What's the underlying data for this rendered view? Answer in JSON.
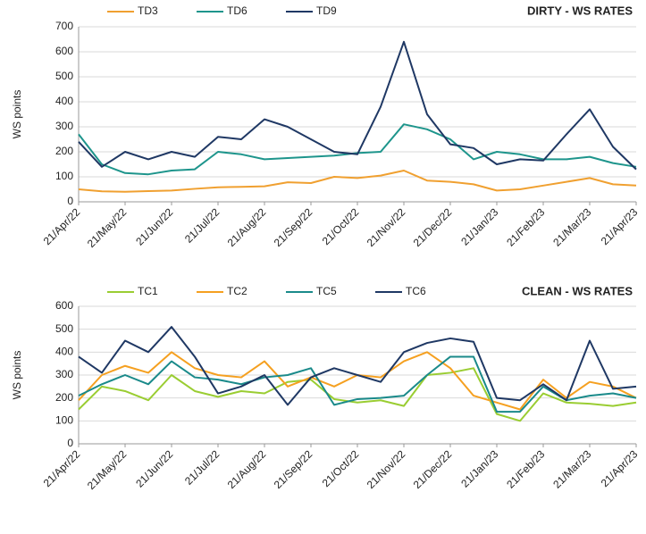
{
  "chart_data": [
    {
      "type": "line",
      "title": "DIRTY - WS RATES",
      "y_label": "WS points",
      "categories": [
        "21/Apr/22",
        null,
        "21/May/22",
        null,
        "21/Jun/22",
        null,
        "21/Jul/22",
        null,
        "21/Aug/22",
        null,
        "21/Sep/22",
        null,
        "21/Oct/22",
        null,
        "21/Nov/22",
        null,
        "21/Dec/22",
        null,
        "21/Jan/23",
        null,
        "21/Feb/23",
        null,
        "21/Mar/23",
        null,
        "21/Apr/23"
      ],
      "series": [
        {
          "name": "TD3",
          "color": "#f0a030",
          "values": [
            50,
            42,
            40,
            43,
            45,
            52,
            58,
            60,
            62,
            78,
            75,
            100,
            95,
            105,
            125,
            85,
            80,
            70,
            45,
            50,
            65,
            80,
            95,
            70,
            65
          ]
        },
        {
          "name": "TD6",
          "color": "#1e958c",
          "values": [
            270,
            150,
            115,
            110,
            125,
            130,
            200,
            190,
            170,
            175,
            180,
            185,
            195,
            200,
            310,
            290,
            250,
            170,
            200,
            190,
            170,
            170,
            180,
            155,
            140
          ]
        },
        {
          "name": "TD9",
          "color": "#1f3864",
          "values": [
            240,
            140,
            200,
            170,
            200,
            180,
            260,
            250,
            330,
            300,
            250,
            200,
            190,
            380,
            640,
            350,
            230,
            215,
            150,
            170,
            165,
            270,
            370,
            220,
            130
          ]
        }
      ],
      "ylim": [
        0,
        700
      ],
      "yticks": [
        0,
        100,
        200,
        300,
        400,
        500,
        600,
        700
      ],
      "grid": true
    },
    {
      "type": "line",
      "title": "CLEAN - WS RATES",
      "y_label": "WS points",
      "categories": [
        "21/Apr/22",
        null,
        "21/May/22",
        null,
        "21/Jun/22",
        null,
        "21/Jul/22",
        null,
        "21/Aug/22",
        null,
        "21/Sep/22",
        null,
        "21/Oct/22",
        null,
        "21/Nov/22",
        null,
        "21/Dec/22",
        null,
        "21/Jan/23",
        null,
        "21/Feb/23",
        null,
        "21/Mar/23",
        null,
        "21/Apr/23"
      ],
      "series": [
        {
          "name": "TC1",
          "color": "#9acd32",
          "values": [
            150,
            250,
            230,
            190,
            300,
            230,
            205,
            230,
            220,
            270,
            280,
            195,
            180,
            190,
            165,
            300,
            310,
            330,
            130,
            100,
            220,
            180,
            175,
            165,
            180
          ]
        },
        {
          "name": "TC2",
          "color": "#f5a020",
          "values": [
            190,
            300,
            340,
            310,
            400,
            330,
            300,
            290,
            360,
            250,
            290,
            250,
            300,
            290,
            360,
            400,
            330,
            210,
            180,
            150,
            280,
            200,
            270,
            250,
            200
          ]
        },
        {
          "name": "TC5",
          "color": "#1a8a8a",
          "values": [
            210,
            260,
            300,
            260,
            360,
            290,
            280,
            260,
            290,
            300,
            330,
            170,
            195,
            200,
            210,
            300,
            380,
            380,
            140,
            140,
            250,
            190,
            210,
            220,
            200
          ]
        },
        {
          "name": "TC6",
          "color": "#1f3864",
          "values": [
            380,
            310,
            450,
            400,
            510,
            380,
            220,
            250,
            300,
            170,
            290,
            330,
            300,
            270,
            400,
            440,
            460,
            445,
            200,
            190,
            260,
            190,
            450,
            240,
            250
          ]
        }
      ],
      "ylim": [
        0,
        600
      ],
      "yticks": [
        0,
        100,
        200,
        300,
        400,
        500,
        600
      ],
      "grid": true
    }
  ]
}
